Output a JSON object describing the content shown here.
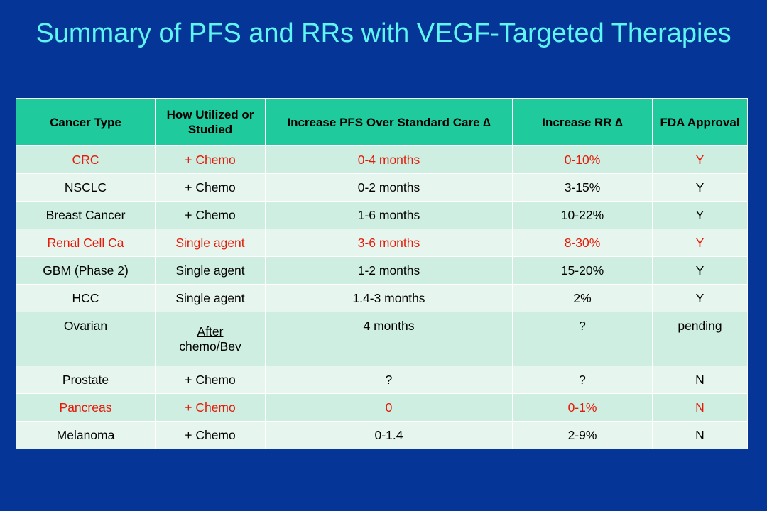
{
  "slide": {
    "title": "Summary of PFS and RRs with VEGF-Targeted Therapies"
  },
  "table": {
    "headers": [
      "Cancer Type",
      "How Utilized or Studied",
      "Increase PFS Over Standard Care ∆",
      "Increase RR ∆",
      "FDA Approval"
    ],
    "rows": [
      {
        "cells": [
          "CRC",
          "+ Chemo",
          "0-4 months",
          "0-10%",
          "Y"
        ],
        "highlight": "red"
      },
      {
        "cells": [
          "NSCLC",
          "+ Chemo",
          "0-2 months",
          "3-15%",
          "Y"
        ],
        "highlight": "none"
      },
      {
        "cells": [
          "Breast Cancer",
          "+ Chemo",
          "1-6 months",
          "10-22%",
          "Y"
        ],
        "highlight": "none"
      },
      {
        "cells": [
          "Renal Cell Ca",
          "Single agent",
          "3-6 months",
          "8-30%",
          "Y"
        ],
        "highlight": "red"
      },
      {
        "cells": [
          "GBM (Phase 2)",
          "Single agent",
          "1-2 months",
          "15-20%",
          "Y"
        ],
        "highlight": "none"
      },
      {
        "cells": [
          "HCC",
          "Single agent",
          "1.4-3 months",
          "2%",
          "Y"
        ],
        "highlight": "none"
      },
      {
        "cells": [
          "Ovarian",
          "chemo/Bev",
          "4 months",
          "?",
          "pending"
        ],
        "underlined_prefix": "After",
        "highlight": "none"
      },
      {
        "cells": [
          "Prostate",
          "+ Chemo",
          "?",
          "?",
          "N"
        ],
        "highlight": "none"
      },
      {
        "cells": [
          "Pancreas",
          "+ Chemo",
          "0",
          "0-1%",
          "N"
        ],
        "highlight": "red"
      },
      {
        "cells": [
          "Melanoma",
          "+ Chemo",
          "0-1.4",
          "2-9%",
          "N"
        ],
        "highlight": "none"
      }
    ]
  },
  "colors": {
    "background": "#043597",
    "title": "#5ff5f0",
    "header_fill": "#1fcb9d",
    "row_fill_a": "#cdeee0",
    "row_fill_b": "#e6f6ee",
    "highlight_text": "#e51a08"
  }
}
